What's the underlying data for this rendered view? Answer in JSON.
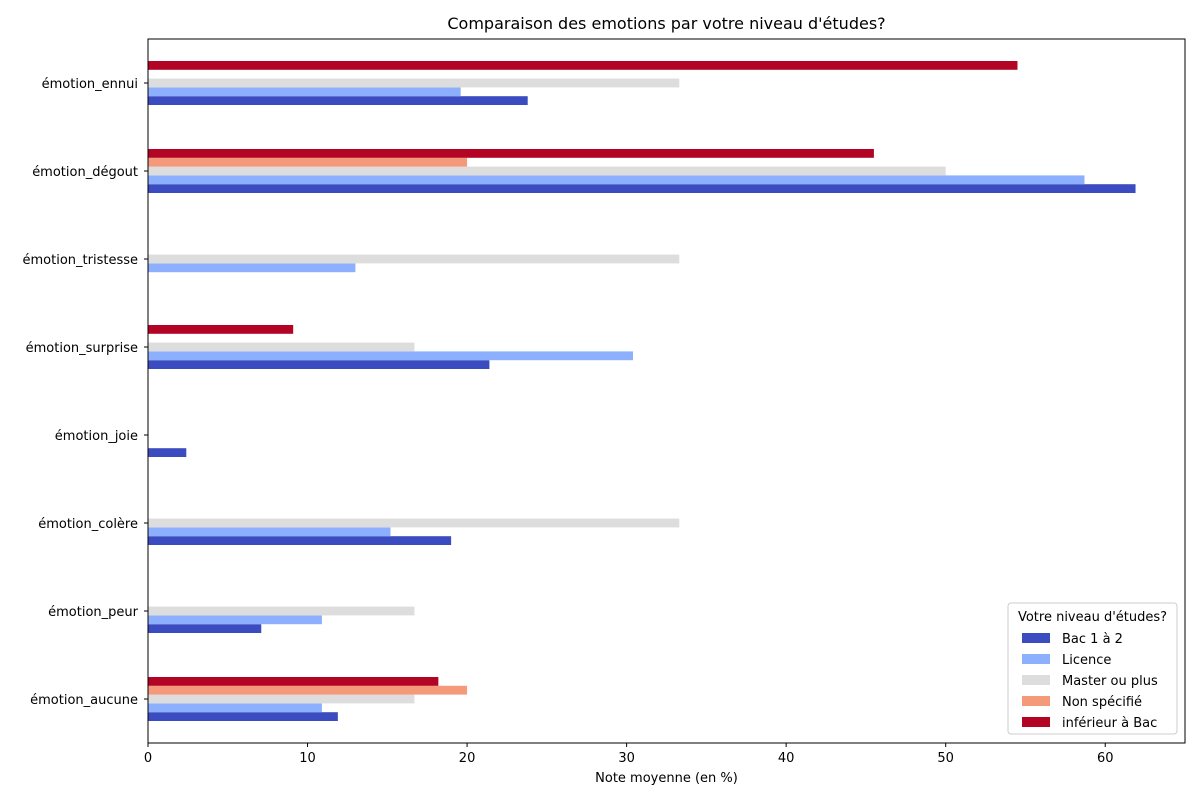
{
  "chart_data": {
    "type": "bar",
    "orientation": "horizontal",
    "title": "Comparaison des emotions par votre niveau d'études?",
    "xlabel": "Note moyenne (en %)",
    "ylabel": "",
    "xlim": [
      0,
      65
    ],
    "xticks": [
      0,
      10,
      20,
      30,
      40,
      50,
      60
    ],
    "categories": [
      "émotion_ennui",
      "émotion_dégout",
      "émotion_tristesse",
      "émotion_surprise",
      "émotion_joie",
      "émotion_colère",
      "émotion_peur",
      "émotion_aucune"
    ],
    "series": [
      {
        "name": "Bac 1 à 2",
        "color": "#3b4cc0",
        "values": [
          23.8,
          61.9,
          0,
          21.4,
          2.4,
          19.0,
          7.1,
          11.9
        ]
      },
      {
        "name": "Licence",
        "color": "#8db0fe",
        "values": [
          19.6,
          58.7,
          13.0,
          30.4,
          0,
          15.2,
          10.9,
          10.9
        ]
      },
      {
        "name": "Master ou plus",
        "color": "#dddddd",
        "values": [
          33.3,
          50.0,
          33.3,
          16.7,
          0,
          33.3,
          16.7,
          16.7
        ]
      },
      {
        "name": "Non spécifié",
        "color": "#f49a7b",
        "values": [
          0,
          20.0,
          0,
          0,
          0,
          0,
          0,
          20.0
        ]
      },
      {
        "name": "inférieur à Bac",
        "color": "#b40426",
        "values": [
          54.5,
          45.5,
          0,
          9.1,
          0,
          0,
          0,
          18.2
        ]
      }
    ],
    "legend": {
      "title": "Votre niveau d'études?",
      "position": "bottom-right"
    },
    "grid": false
  }
}
